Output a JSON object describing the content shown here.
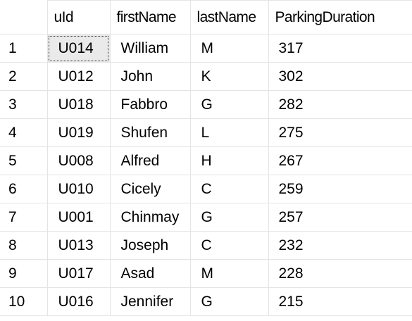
{
  "grid": {
    "columns": [
      {
        "key": "rownum",
        "label": ""
      },
      {
        "key": "uId",
        "label": "uId"
      },
      {
        "key": "firstName",
        "label": "firstName"
      },
      {
        "key": "lastName",
        "label": "lastName"
      },
      {
        "key": "ParkingDuration",
        "label": "ParkingDuration"
      }
    ],
    "rows": [
      {
        "rownum": "1",
        "uId": "U014",
        "firstName": "William",
        "lastName": "M",
        "ParkingDuration": "317"
      },
      {
        "rownum": "2",
        "uId": "U012",
        "firstName": "John",
        "lastName": "K",
        "ParkingDuration": "302"
      },
      {
        "rownum": "3",
        "uId": "U018",
        "firstName": "Fabbro",
        "lastName": "G",
        "ParkingDuration": "282"
      },
      {
        "rownum": "4",
        "uId": "U019",
        "firstName": "Shufen",
        "lastName": "L",
        "ParkingDuration": "275"
      },
      {
        "rownum": "5",
        "uId": "U008",
        "firstName": "Alfred",
        "lastName": "H",
        "ParkingDuration": "267"
      },
      {
        "rownum": "6",
        "uId": "U010",
        "firstName": "Cicely",
        "lastName": "C",
        "ParkingDuration": "259"
      },
      {
        "rownum": "7",
        "uId": "U001",
        "firstName": "Chinmay",
        "lastName": "G",
        "ParkingDuration": "257"
      },
      {
        "rownum": "8",
        "uId": "U013",
        "firstName": "Joseph",
        "lastName": "C",
        "ParkingDuration": "232"
      },
      {
        "rownum": "9",
        "uId": "U017",
        "firstName": "Asad",
        "lastName": "M",
        "ParkingDuration": "228"
      },
      {
        "rownum": "10",
        "uId": "U016",
        "firstName": "Jennifer",
        "lastName": "G",
        "ParkingDuration": "215"
      }
    ],
    "selected_cell": {
      "row": 0,
      "column": "uId"
    }
  }
}
